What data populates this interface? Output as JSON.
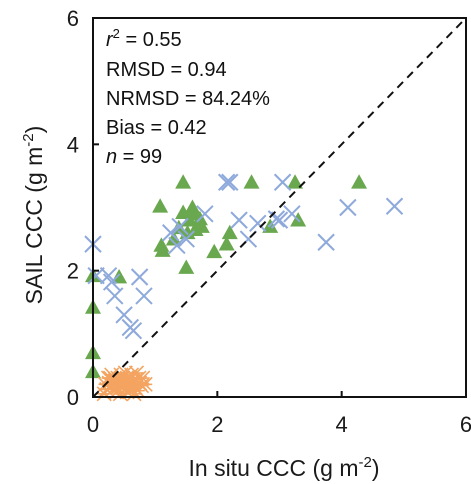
{
  "chart_data": {
    "type": "scatter",
    "xlabel": "In situ CCC (g m",
    "xlabel_sup": "-2",
    "xlabel_close": ")",
    "ylabel": "SAIL CCC (g m",
    "ylabel_sup": "-2",
    "ylabel_close": ")",
    "xlim": [
      0,
      6
    ],
    "ylim": [
      0,
      6
    ],
    "xticks": [
      "0",
      "2",
      "4",
      "6"
    ],
    "yticks": [
      "0",
      "2",
      "4",
      "6"
    ],
    "grid": false,
    "legend": "none",
    "one_to_one_line": true,
    "stats": {
      "r2": {
        "var": "r",
        "sup": "2",
        "text": " = 0.55"
      },
      "rmsd": "RMSD = 0.94",
      "nrmsd": "NRMSD = 84.24%",
      "bias": "Bias = 0.42",
      "n": {
        "var": "n",
        "text": " = 99"
      }
    },
    "series": [
      {
        "marker": "triangle",
        "color": "#6aa84f",
        "points": [
          [
            0.0,
            1.92
          ],
          [
            0.0,
            1.42
          ],
          [
            0.0,
            0.7
          ],
          [
            0.0,
            0.4
          ],
          [
            0.42,
            1.9
          ],
          [
            1.08,
            3.02
          ],
          [
            1.1,
            2.4
          ],
          [
            1.12,
            2.32
          ],
          [
            1.3,
            2.5
          ],
          [
            1.38,
            2.68
          ],
          [
            1.45,
            3.4
          ],
          [
            1.45,
            2.92
          ],
          [
            1.5,
            2.05
          ],
          [
            1.52,
            2.6
          ],
          [
            1.55,
            2.8
          ],
          [
            1.6,
            3.0
          ],
          [
            1.62,
            2.9
          ],
          [
            1.65,
            2.65
          ],
          [
            1.7,
            2.75
          ],
          [
            1.72,
            2.82
          ],
          [
            1.75,
            2.7
          ],
          [
            1.95,
            2.3
          ],
          [
            2.15,
            2.42
          ],
          [
            2.2,
            2.6
          ],
          [
            2.55,
            3.4
          ],
          [
            2.85,
            2.7
          ],
          [
            3.25,
            3.4
          ],
          [
            3.3,
            2.8
          ],
          [
            4.28,
            3.4
          ]
        ]
      },
      {
        "marker": "x",
        "color": "#8ea9db",
        "points": [
          [
            0.0,
            2.42
          ],
          [
            0.05,
            1.92
          ],
          [
            0.25,
            1.92
          ],
          [
            0.3,
            1.82
          ],
          [
            0.35,
            1.6
          ],
          [
            0.5,
            1.3
          ],
          [
            0.6,
            1.1
          ],
          [
            0.65,
            1.05
          ],
          [
            0.75,
            1.9
          ],
          [
            0.82,
            1.6
          ],
          [
            1.35,
            2.4
          ],
          [
            1.4,
            2.7
          ],
          [
            1.5,
            2.5
          ],
          [
            1.8,
            2.9
          ],
          [
            2.15,
            3.4
          ],
          [
            2.2,
            3.4
          ],
          [
            2.35,
            2.8
          ],
          [
            2.5,
            2.5
          ],
          [
            2.65,
            2.75
          ],
          [
            3.0,
            2.8
          ],
          [
            3.05,
            3.4
          ],
          [
            3.2,
            2.9
          ],
          [
            3.75,
            2.45
          ],
          [
            4.1,
            3.0
          ],
          [
            4.85,
            3.02
          ],
          [
            1.25,
            2.6
          ],
          [
            2.95,
            2.82
          ]
        ]
      },
      {
        "marker": "asterisk",
        "color": "#f4a460",
        "points": [
          [
            0.2,
            0.2
          ],
          [
            0.25,
            0.3
          ],
          [
            0.3,
            0.18
          ],
          [
            0.32,
            0.12
          ],
          [
            0.35,
            0.25
          ],
          [
            0.4,
            0.3
          ],
          [
            0.42,
            0.2
          ],
          [
            0.45,
            0.35
          ],
          [
            0.48,
            0.15
          ],
          [
            0.5,
            0.25
          ],
          [
            0.55,
            0.3
          ],
          [
            0.58,
            0.12
          ],
          [
            0.6,
            0.22
          ],
          [
            0.62,
            0.35
          ],
          [
            0.65,
            0.2
          ],
          [
            0.68,
            0.15
          ],
          [
            0.7,
            0.28
          ],
          [
            0.72,
            0.1
          ],
          [
            0.75,
            0.22
          ],
          [
            0.78,
            0.18
          ],
          [
            0.8,
            0.3
          ],
          [
            0.38,
            0.08
          ],
          [
            0.28,
            0.3
          ],
          [
            0.52,
            0.38
          ],
          [
            0.44,
            0.05
          ],
          [
            0.66,
            0.05
          ],
          [
            0.22,
            0.12
          ],
          [
            0.58,
            0.28
          ],
          [
            0.34,
            0.22
          ],
          [
            0.7,
            0.38
          ],
          [
            0.48,
            0.3
          ],
          [
            0.26,
            0.22
          ],
          [
            0.62,
            0.12
          ],
          [
            0.4,
            0.15
          ],
          [
            0.55,
            0.08
          ],
          [
            0.74,
            0.3
          ],
          [
            0.3,
            0.35
          ],
          [
            0.5,
            0.18
          ],
          [
            0.36,
            0.28
          ],
          [
            0.64,
            0.25
          ],
          [
            0.46,
            0.22
          ],
          [
            0.84,
            0.2
          ],
          [
            0.18,
            0.05
          ]
        ]
      }
    ]
  }
}
